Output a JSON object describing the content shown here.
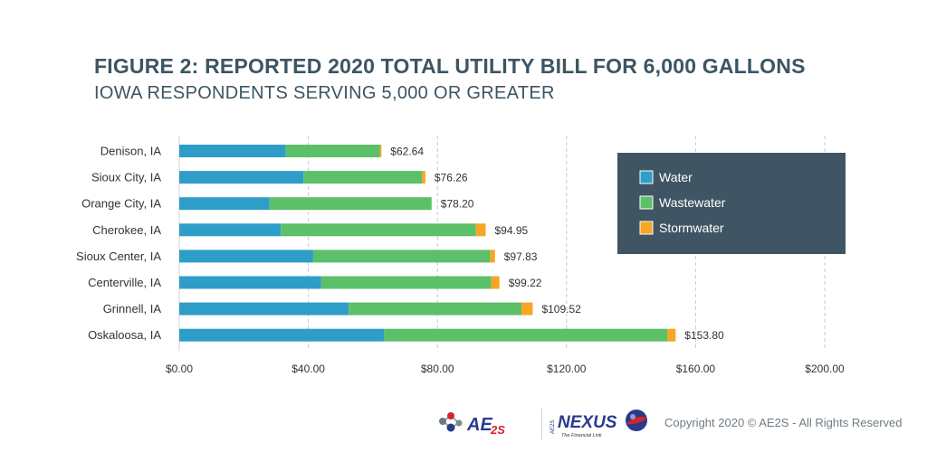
{
  "header": {
    "title": "FIGURE 2: REPORTED 2020 TOTAL UTILITY BILL FOR 6,000 GALLONS",
    "subtitle": "IOWA RESPONDENTS SERVING 5,000 OR GREATER"
  },
  "colors": {
    "water": "#2e9ec9",
    "wastewater": "#5cc069",
    "stormwater": "#f6a623",
    "legend_bg": "#3f5563",
    "title": "#3c5563",
    "grid": "#c9c9c9"
  },
  "chart_data": {
    "type": "bar",
    "orientation": "horizontal",
    "stacked": true,
    "categories": [
      "Denison, IA",
      "Sioux City, IA",
      "Orange City, IA",
      "Cherokee, IA",
      "Sioux Center, IA",
      "Centerville, IA",
      "Grinnell, IA",
      "Oskaloosa, IA"
    ],
    "series": [
      {
        "name": "Water",
        "color": "#2e9ec9",
        "values": [
          33.0,
          38.5,
          28.0,
          31.5,
          41.5,
          44.0,
          52.5,
          63.5
        ]
      },
      {
        "name": "Wastewater",
        "color": "#5cc069",
        "values": [
          29.14,
          36.76,
          50.2,
          60.45,
          54.83,
          52.72,
          53.52,
          87.8
        ]
      },
      {
        "name": "Stormwater",
        "color": "#f6a623",
        "values": [
          0.5,
          1.0,
          0.0,
          3.0,
          1.5,
          2.5,
          3.5,
          2.5
        ]
      }
    ],
    "totals": [
      62.64,
      76.26,
      78.2,
      94.95,
      97.83,
      99.22,
      109.52,
      153.8
    ],
    "total_labels": [
      "$62.64",
      "$76.26",
      "$78.20",
      "$94.95",
      "$97.83",
      "$99.22",
      "$109.52",
      "$153.80"
    ],
    "x_ticks": [
      0,
      40,
      80,
      120,
      160,
      200
    ],
    "x_tick_labels": [
      "$0.00",
      "$40.00",
      "$80.00",
      "$120.00",
      "$160.00",
      "$200.00"
    ],
    "xlim": [
      0,
      200
    ],
    "xlabel": "",
    "ylabel": "",
    "grid": true,
    "legend_position": "top-right",
    "legend": [
      "Water",
      "Wastewater",
      "Stormwater"
    ]
  },
  "footer": {
    "logo_ae2s_text": "AE",
    "logo_ae2s_sub": "2S",
    "logo_nexus_prefix": "AE2S",
    "logo_nexus_text": "NEXUS",
    "logo_nexus_tagline": "The Financial Link",
    "copyright": "Copyright 2020 © AE2S - All Rights Reserved"
  }
}
